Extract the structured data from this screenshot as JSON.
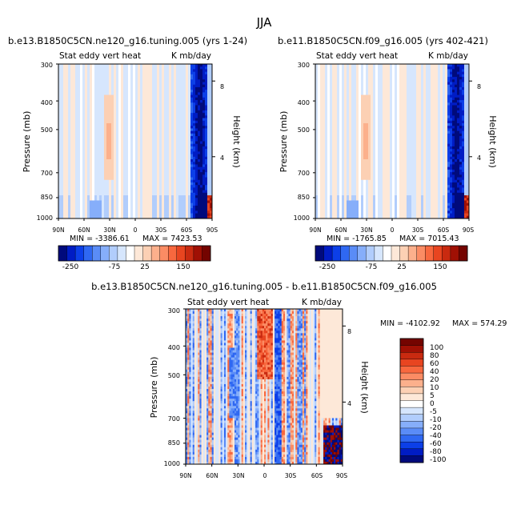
{
  "figure_title": "JJA",
  "colors": {
    "blues": [
      "#000a7c",
      "#001cc4",
      "#0c3fe8",
      "#2f68f2",
      "#5a8cf7",
      "#86aefa",
      "#b1cdfc",
      "#d6e6fd"
    ],
    "reds": [
      "#fde8d8",
      "#fcd0b4",
      "#fcb08c",
      "#fb8c64",
      "#f8683e",
      "#e84520",
      "#c92a10",
      "#a01004",
      "#740400"
    ],
    "axis": "#000000"
  },
  "chart_data": [
    {
      "id": "top-left",
      "type": "heatmap",
      "title": "b.e13.B1850C5CN.ne120_g16.tuning.005 (yrs 1-24)",
      "subtitle_left": "Stat eddy vert heat",
      "subtitle_right": "K mb/day",
      "ylabel": "Pressure (mb)",
      "y2label": "Height (km)",
      "xticks": [
        "90N",
        "60N",
        "30N",
        "0",
        "30S",
        "60S",
        "90S"
      ],
      "yticks": [
        "300",
        "400",
        "500",
        "700",
        "850",
        "1000"
      ],
      "y2ticks": [
        "8",
        "4"
      ],
      "min_label": "MIN = -3386.61",
      "max_label": "MAX = 7423.53",
      "colorbar_ticks": [
        "-250",
        "-75",
        "25",
        "150"
      ],
      "ylim": [
        1000,
        300
      ],
      "xlim": [
        90,
        -90
      ]
    },
    {
      "id": "top-right",
      "type": "heatmap",
      "title": "b.e11.B1850C5CN.f09_g16.005 (yrs 402-421)",
      "subtitle_left": "Stat eddy vert heat",
      "subtitle_right": "K mb/day",
      "ylabel": "Pressure (mb)",
      "y2label": "Height (km)",
      "xticks": [
        "90N",
        "60N",
        "30N",
        "0",
        "30S",
        "60S",
        "90S"
      ],
      "yticks": [
        "300",
        "400",
        "500",
        "700",
        "850",
        "1000"
      ],
      "y2ticks": [
        "8",
        "4"
      ],
      "min_label": "MIN = -1765.85",
      "max_label": "MAX = 7015.43",
      "colorbar_ticks": [
        "-250",
        "-75",
        "25",
        "150"
      ],
      "ylim": [
        1000,
        300
      ],
      "xlim": [
        90,
        -90
      ]
    },
    {
      "id": "bottom-diff",
      "type": "heatmap",
      "title": "b.e13.B1850C5CN.ne120_g16.tuning.005 - b.e11.B1850C5CN.f09_g16.005",
      "subtitle_left": "Stat eddy vert heat",
      "subtitle_right": "K mb/day",
      "ylabel": "Pressure (mb)",
      "y2label": "Height (km)",
      "xticks": [
        "90N",
        "60N",
        "30N",
        "0",
        "30S",
        "60S",
        "90S"
      ],
      "yticks": [
        "300",
        "400",
        "500",
        "700",
        "850",
        "1000"
      ],
      "y2ticks": [
        "8",
        "4"
      ],
      "min_label": "MIN = -4102.92",
      "max_label": "MAX = 574.29",
      "colorbar_ticks": [
        "100",
        "80",
        "60",
        "40",
        "20",
        "10",
        "5",
        "0",
        "-5",
        "-10",
        "-20",
        "-40",
        "-60",
        "-80",
        "-100"
      ],
      "ylim": [
        1000,
        300
      ],
      "xlim": [
        90,
        -90
      ]
    }
  ]
}
